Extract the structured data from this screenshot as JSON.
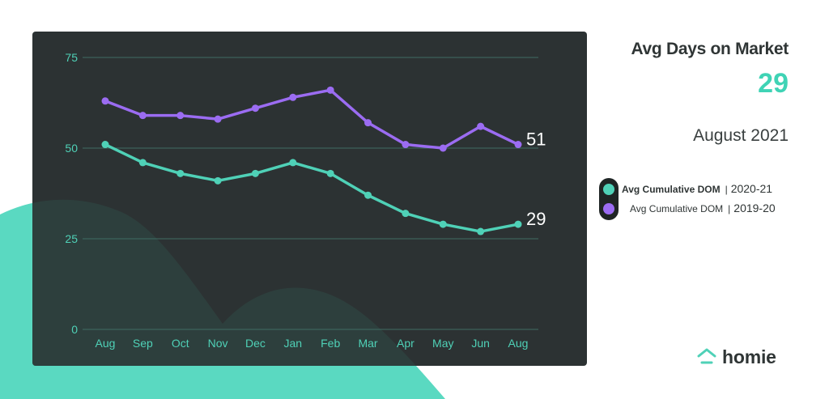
{
  "header": {
    "title": "Avg Days on Market",
    "headline_value": "29",
    "period": "August 2021"
  },
  "legend": [
    {
      "label": "Avg Cumulative DOM",
      "separator": "|",
      "year": "2020-21"
    },
    {
      "label": "Avg Cumulative DOM",
      "separator": "|",
      "year": "2019-20"
    }
  ],
  "brand": {
    "name": "homie",
    "icon": "house-icon"
  },
  "colors": {
    "panel": "#2c3233",
    "teal": "#4fd1b7",
    "purple": "#9b6cf2",
    "blob": "#5ad9c1"
  },
  "chart_data": {
    "type": "line",
    "categories": [
      "Aug",
      "Sep",
      "Oct",
      "Nov",
      "Dec",
      "Jan",
      "Feb",
      "Mar",
      "Apr",
      "May",
      "Jun",
      "Aug"
    ],
    "ylim": [
      0,
      75
    ],
    "yticks": [
      0,
      25,
      50,
      75
    ],
    "grid": true,
    "series": [
      {
        "name": "2019-20",
        "color": "#9b6cf2",
        "values": [
          63,
          59,
          59,
          58,
          61,
          64,
          66,
          57,
          51,
          50,
          56,
          51
        ],
        "end_label": "51"
      },
      {
        "name": "2020-21",
        "color": "#4fd1b7",
        "values": [
          51,
          46,
          43,
          41,
          43,
          46,
          43,
          37,
          32,
          29,
          27,
          29
        ],
        "end_label": "29"
      }
    ],
    "title": "",
    "xlabel": "",
    "ylabel": ""
  }
}
